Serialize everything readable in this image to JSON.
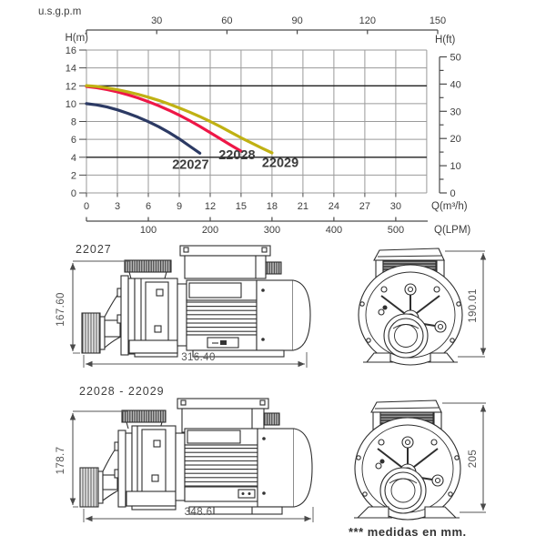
{
  "chart_data": {
    "type": "line",
    "title": "",
    "xlabel": "Q(m³/h)",
    "ylabel": "H(m)",
    "top_axis_label": "u.s.g.p.m",
    "right_axis_label": "H(ft)",
    "lpm_axis_label": "Q(LPM)",
    "xlim": [
      0,
      33
    ],
    "ylim": [
      0,
      16
    ],
    "x_ticks": [
      0,
      3,
      6,
      9,
      12,
      15,
      18,
      21,
      24,
      27,
      30
    ],
    "y_ticks": [
      0,
      2,
      4,
      6,
      8,
      10,
      12,
      14,
      16
    ],
    "usgpm_ticks": [
      30,
      60,
      90,
      120,
      150
    ],
    "hft_ticks": [
      0,
      10,
      20,
      30,
      40,
      50
    ],
    "lpm_ticks": [
      100,
      200,
      300,
      400,
      500
    ],
    "grid": true,
    "emphasized_hlines": [
      4,
      12
    ],
    "series": [
      {
        "name": "22027",
        "color": "#2c3a64",
        "label_at": [
          10.1,
          3.2
        ],
        "points": [
          [
            0,
            10.0
          ],
          [
            1,
            9.85
          ],
          [
            2,
            9.62
          ],
          [
            3,
            9.3
          ],
          [
            4,
            8.92
          ],
          [
            5,
            8.48
          ],
          [
            6,
            7.98
          ],
          [
            7,
            7.42
          ],
          [
            8,
            6.78
          ],
          [
            9,
            6.05
          ],
          [
            10,
            5.25
          ],
          [
            11,
            4.45
          ]
        ]
      },
      {
        "name": "22028",
        "color": "#ee1747",
        "label_at": [
          14.6,
          4.3
        ],
        "points": [
          [
            0,
            11.92
          ],
          [
            1,
            11.78
          ],
          [
            2,
            11.58
          ],
          [
            3,
            11.32
          ],
          [
            4,
            11.0
          ],
          [
            5,
            10.64
          ],
          [
            6,
            10.22
          ],
          [
            7,
            9.76
          ],
          [
            8,
            9.26
          ],
          [
            9,
            8.7
          ],
          [
            10,
            8.1
          ],
          [
            11,
            7.45
          ],
          [
            12,
            6.76
          ],
          [
            13,
            6.05
          ],
          [
            14,
            5.35
          ],
          [
            15,
            4.68
          ]
        ]
      },
      {
        "name": "22029",
        "color": "#c0b113",
        "label_at": [
          18.8,
          3.4
        ],
        "points": [
          [
            0,
            12.02
          ],
          [
            1,
            11.92
          ],
          [
            2,
            11.76
          ],
          [
            3,
            11.56
          ],
          [
            4,
            11.32
          ],
          [
            5,
            11.04
          ],
          [
            6,
            10.72
          ],
          [
            7,
            10.36
          ],
          [
            8,
            9.96
          ],
          [
            9,
            9.52
          ],
          [
            10,
            9.05
          ],
          [
            11,
            8.55
          ],
          [
            12,
            8.0
          ],
          [
            13,
            7.42
          ],
          [
            14,
            6.8
          ],
          [
            15,
            6.18
          ],
          [
            16,
            5.6
          ],
          [
            17,
            5.02
          ],
          [
            18,
            4.48
          ]
        ]
      }
    ]
  },
  "drawings": {
    "pump1": {
      "title": "22027",
      "height_mm": "167.60",
      "length_mm": "316.40",
      "front_height_mm": "190.01"
    },
    "pump2": {
      "title": "22028 - 22029",
      "height_mm": "178.7",
      "length_mm": "348.6",
      "front_height_mm": "205"
    },
    "note": "*** medidas en mm."
  }
}
